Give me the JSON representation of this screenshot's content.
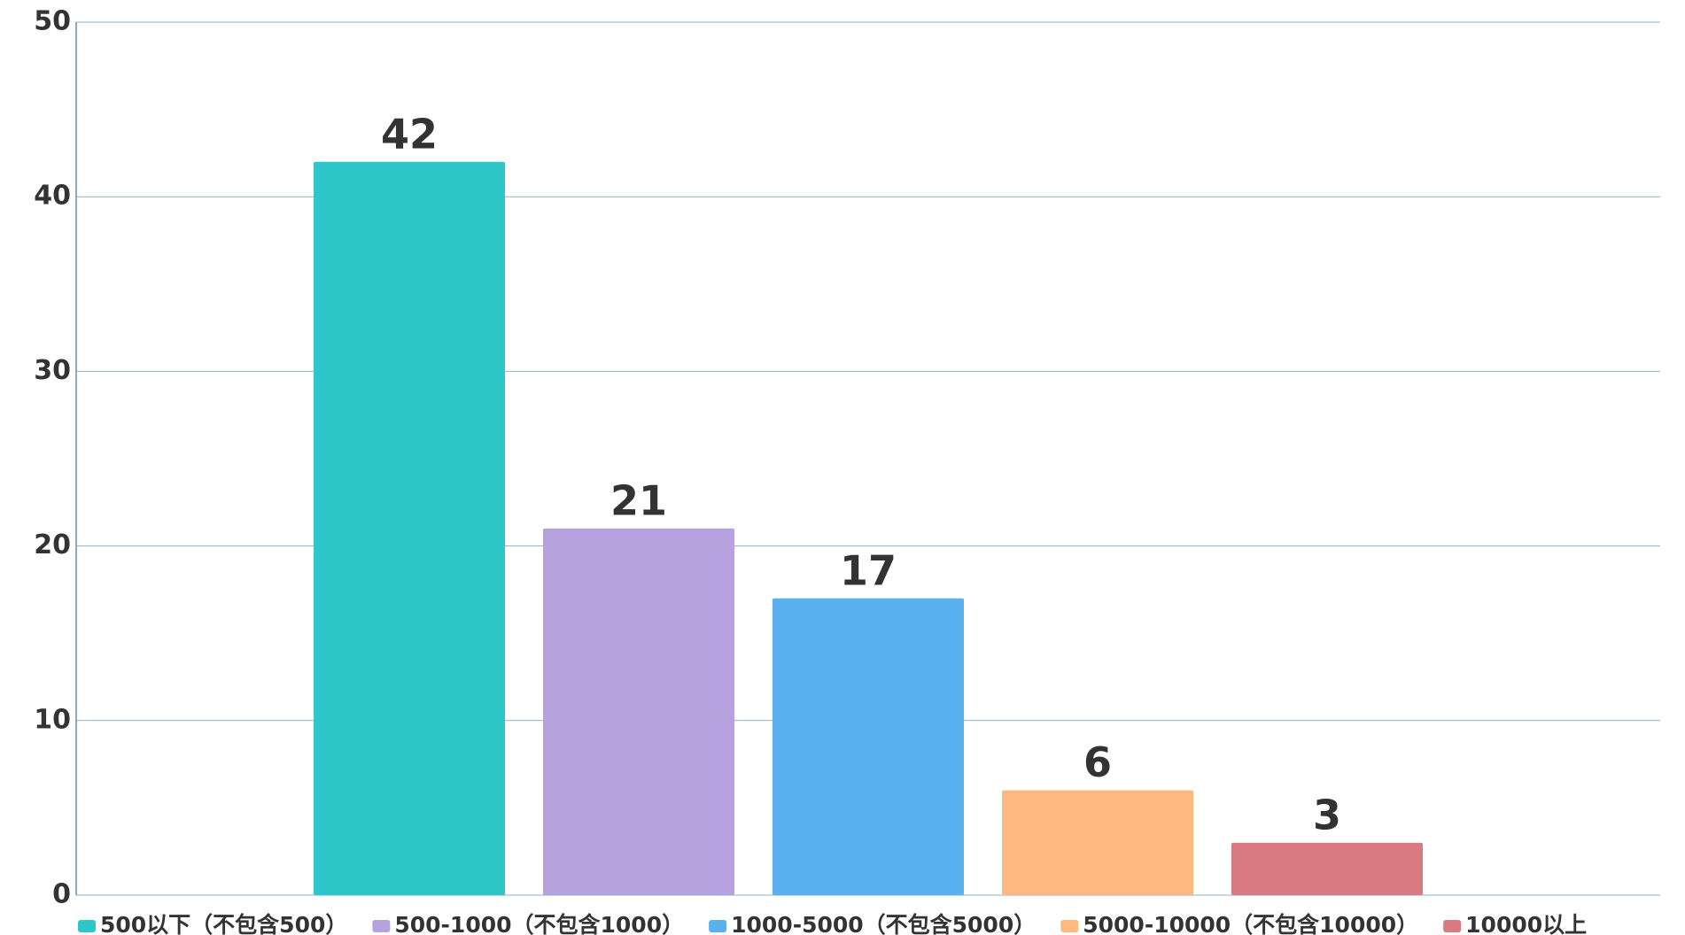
{
  "chart_data": {
    "type": "bar",
    "categories": [
      null
    ],
    "series": [
      {
        "name": "500以下（不包含500）",
        "color": "#2ec7c9",
        "values": [
          42
        ]
      },
      {
        "name": "500-1000（不包含1000）",
        "color": "#b6a2de",
        "values": [
          21
        ]
      },
      {
        "name": "1000-5000（不包含5000）",
        "color": "#5ab1ef",
        "values": [
          17
        ]
      },
      {
        "name": "5000-10000（不包含10000）",
        "color": "#ffb980",
        "values": [
          6
        ]
      },
      {
        "name": "10000以上",
        "color": "#d87a80",
        "values": [
          3
        ]
      }
    ],
    "ylim": [
      0,
      50
    ],
    "yticks": [
      0,
      10,
      20,
      30,
      40,
      50
    ],
    "grid": true
  }
}
